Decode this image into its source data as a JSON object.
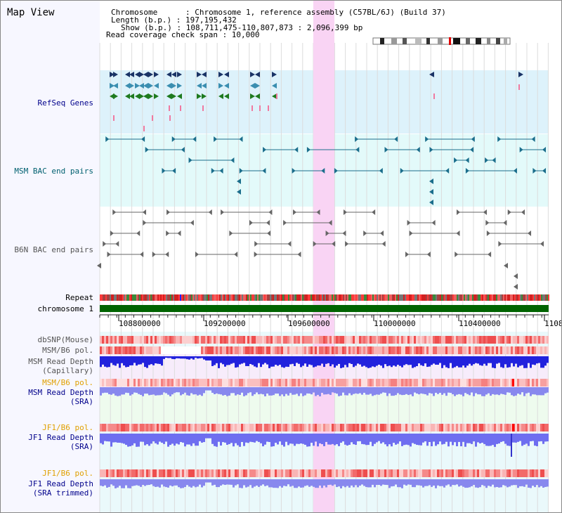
{
  "title": "Map View",
  "info": {
    "chromosome": "Chromosome      : Chromosome 1, reference assembly (C57BL/6J) (Build 37)",
    "length": "Length (b.p.) : 197,195,432",
    "show": "Show (b.p.) : 108,711,475-110,807,873 : 2,096,399 bp",
    "span": "Read coverage check span : 10,000"
  },
  "tracks": {
    "refseq": "RefSeq Genes",
    "msm_bac": "MSM BAC end pairs",
    "b6n_bac": "B6N BAC end pairs",
    "repeat": "Repeat",
    "chromosome": "chromosome 1",
    "dbsnp": "dbSNP(Mouse)",
    "msm_b6_pol_1": "MSM/B6 pol.",
    "msm_depth_cap_1": "MSM Read Depth",
    "msm_depth_cap_2": "(Capillary)",
    "msm_b6_pol_2": "MSM/B6 pol.",
    "msm_depth_sra_1": "MSM Read Depth",
    "msm_depth_sra_2": "(SRA)",
    "jf1_b6_pol_1": "JF1/B6 pol.",
    "jf1_depth_sra_1": "JF1 Read Depth",
    "jf1_depth_sra_2": "(SRA)",
    "jf1_b6_pol_2": "JF1/B6 pol.",
    "jf1_depth_trim_1": "JF1 Read Depth",
    "jf1_depth_trim_2": "(SRA trimmed)"
  },
  "axis": {
    "ticks": [
      "108800000",
      "109200000",
      "109600000",
      "110000000",
      "110400000",
      "1108"
    ]
  },
  "colors": {
    "refseq_bg": "#ddf2fb",
    "msm_bac_bg": "#e3fafa",
    "highlight": "#f9d4f4",
    "chromosome_bar": "#006400",
    "depth_blue": "#2222dd",
    "depth_lavender": "#8888ee"
  }
}
